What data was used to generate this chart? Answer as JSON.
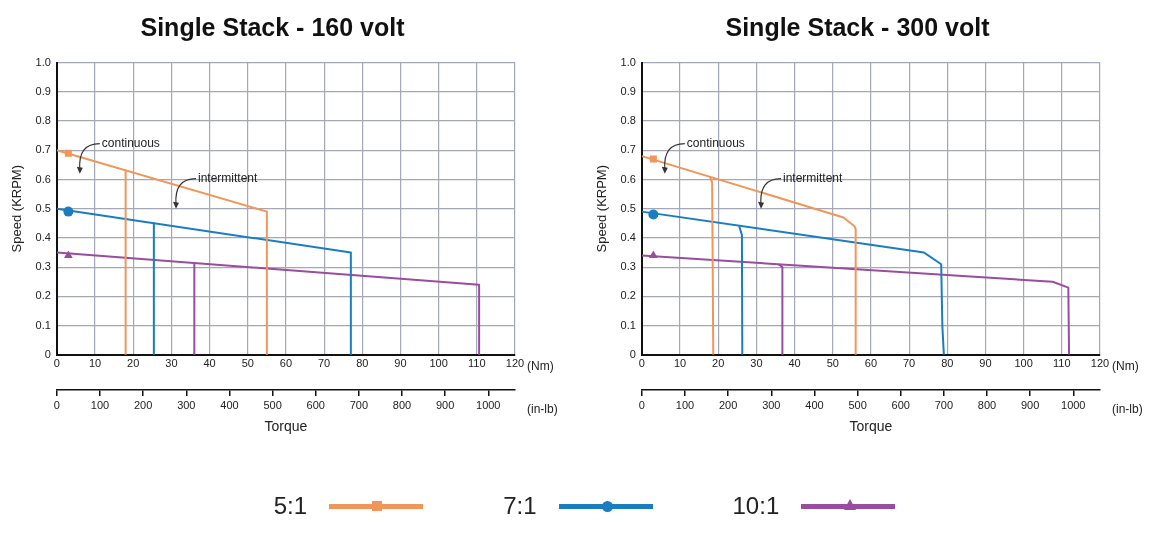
{
  "chart_data": [
    {
      "type": "line",
      "title": "Single Stack - 160 volt",
      "xlabel": "Torque",
      "ylabel": "Speed (KRPM)",
      "xlim": [
        0,
        120
      ],
      "xticks": [
        0,
        10,
        20,
        30,
        40,
        50,
        60,
        70,
        80,
        90,
        100,
        110,
        120
      ],
      "x2lim": [
        0,
        1062
      ],
      "x2ticks": [
        0,
        100,
        200,
        300,
        400,
        500,
        600,
        700,
        800,
        900,
        1000
      ],
      "ylim": [
        0,
        1
      ],
      "yticks": [
        0,
        0.1,
        0.2,
        0.3,
        0.4,
        0.5,
        0.6,
        0.7,
        0.8,
        0.9,
        {
          "value": 1,
          "label": "1.0"
        }
      ],
      "grid": true,
      "legend": "bottom",
      "series": [
        {
          "type": "line",
          "color": "#f0965a",
          "marker": "none",
          "x": [
            0,
            55,
            55
          ],
          "values": [
            0.7,
            0.49,
            0
          ]
        },
        {
          "type": "line",
          "color": "#f0965a",
          "marker": "none",
          "x": [
            18,
            18
          ],
          "values": [
            0.63,
            0
          ]
        },
        {
          "type": "scatter",
          "name": "5:1",
          "color": "#f0965a",
          "marker": "square",
          "x": [
            3
          ],
          "values": [
            0.69
          ]
        },
        {
          "type": "line",
          "color": "#1a7dc0",
          "marker": "none",
          "x": [
            0,
            77,
            77
          ],
          "values": [
            0.5,
            0.35,
            0
          ]
        },
        {
          "type": "line",
          "color": "#1a7dc0",
          "marker": "none",
          "x": [
            25.4,
            25.4
          ],
          "values": [
            0.45,
            0
          ]
        },
        {
          "type": "scatter",
          "name": "7:1",
          "color": "#1a7dc0",
          "marker": "circle",
          "x": [
            3
          ],
          "values": [
            0.49
          ]
        },
        {
          "type": "line",
          "color": "#9a4c9e",
          "marker": "none",
          "x": [
            0,
            110.6,
            110.6
          ],
          "values": [
            0.35,
            0.24,
            0
          ]
        },
        {
          "type": "line",
          "color": "#9a4c9e",
          "marker": "none",
          "x": [
            36,
            36
          ],
          "values": [
            0.31,
            0
          ]
        },
        {
          "type": "scatter",
          "name": "10:1",
          "color": "#9a4c9e",
          "marker": "triangle",
          "x": [
            3
          ],
          "values": [
            0.34
          ]
        }
      ],
      "annotations": [
        "(Nm)",
        "(in-lb)",
        "continuous",
        "intermittent"
      ]
    },
    {
      "type": "line",
      "title": "Single Stack - 300 volt",
      "xlabel": "Torque",
      "ylabel": "Speed (KRPM)",
      "xlim": [
        0,
        120
      ],
      "xticks": [
        0,
        10,
        20,
        30,
        40,
        50,
        60,
        70,
        80,
        90,
        100,
        110,
        120
      ],
      "x2lim": [
        0,
        1062
      ],
      "x2ticks": [
        0,
        100,
        200,
        300,
        400,
        500,
        600,
        700,
        800,
        900,
        1000
      ],
      "ylim": [
        0,
        1
      ],
      "yticks": [
        0,
        0.1,
        0.2,
        0.3,
        0.4,
        0.5,
        0.6,
        0.7,
        0.8,
        0.9,
        {
          "value": 1,
          "label": "1.0"
        }
      ],
      "grid": true,
      "series": [
        {
          "type": "line",
          "color": "#f0965a",
          "marker": "none",
          "x": [
            0,
            52.8,
            55.7,
            56,
            56
          ],
          "values": [
            0.68,
            0.47,
            0.44,
            0.43,
            0
          ]
        },
        {
          "type": "line",
          "color": "#f0965a",
          "marker": "none",
          "x": [
            17.8,
            18.4,
            18.7
          ],
          "values": [
            0.61,
            0.59,
            0
          ]
        },
        {
          "type": "scatter",
          "color": "#f0965a",
          "marker": "square",
          "x": [
            3
          ],
          "values": [
            0.67
          ]
        },
        {
          "type": "line",
          "color": "#1a7dc0",
          "marker": "none",
          "x": [
            0,
            73.9,
            78.4,
            78.7,
            79.1
          ],
          "values": [
            0.49,
            0.35,
            0.31,
            0.1,
            0
          ]
        },
        {
          "type": "line",
          "color": "#1a7dc0",
          "marker": "none",
          "x": [
            25.5,
            26.2,
            26.3
          ],
          "values": [
            0.44,
            0.41,
            0
          ]
        },
        {
          "type": "scatter",
          "color": "#1a7dc0",
          "marker": "circle",
          "x": [
            3
          ],
          "values": [
            0.48
          ]
        },
        {
          "type": "line",
          "color": "#9a4c9e",
          "marker": "none",
          "x": [
            0,
            107.6,
            111.7,
            111.9
          ],
          "values": [
            0.34,
            0.25,
            0.23,
            0
          ]
        },
        {
          "type": "line",
          "color": "#9a4c9e",
          "marker": "none",
          "x": [
            35.8,
            36.8,
            36.8
          ],
          "values": [
            0.31,
            0.3,
            0
          ]
        },
        {
          "type": "scatter",
          "color": "#9a4c9e",
          "marker": "triangle",
          "x": [
            3
          ],
          "values": [
            0.34
          ]
        }
      ],
      "annotations": [
        "(Nm)",
        "(in-lb)",
        "continuous",
        "intermittent"
      ]
    }
  ]
}
